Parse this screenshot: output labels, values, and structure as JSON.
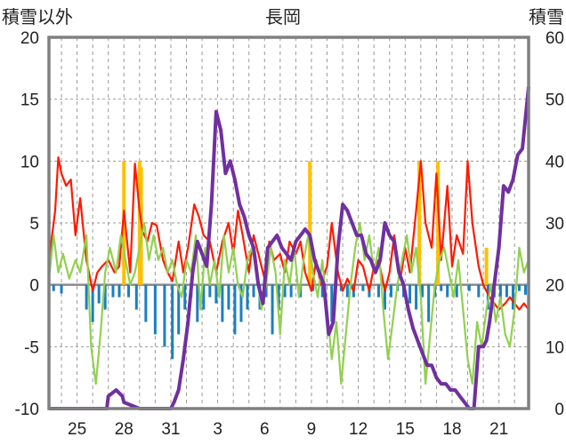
{
  "chart_data": {
    "type": "line",
    "title": "長岡",
    "ylabel_left": "積雪以外",
    "ylabel_right": "積雪",
    "ylim_left": [
      -10,
      20
    ],
    "ylim_right": [
      0,
      60
    ],
    "yticks_left": [
      "20",
      "15",
      "10",
      "5",
      "0",
      "-5",
      "-10"
    ],
    "yticks_right": [
      "60",
      "50",
      "40",
      "30",
      "20",
      "10",
      "0"
    ],
    "xticks": [
      {
        "label": "25",
        "x": 25
      },
      {
        "label": "28",
        "x": 28
      },
      {
        "label": "31",
        "x": 31
      },
      {
        "label": "3",
        "x": 34
      },
      {
        "label": "6",
        "x": 37
      },
      {
        "label": "9",
        "x": 40
      },
      {
        "label": "12",
        "x": 43
      },
      {
        "label": "15",
        "x": 46
      },
      {
        "label": "18",
        "x": 49
      },
      {
        "label": "21",
        "x": 52
      }
    ],
    "xlim": [
      23.2,
      53.9
    ],
    "grid": true,
    "colors": {
      "temperature": "#ff1a00",
      "wind": "#92d050",
      "sunshine": "#ffc000",
      "precipitation": "#1a7fc1",
      "snow_depth": "#7030a0"
    },
    "series": [
      {
        "key": "temperature",
        "axis": "left",
        "x": [
          23.2,
          23.6,
          23.8,
          24.0,
          24.3,
          24.6,
          24.9,
          25.2,
          25.6,
          26.0,
          26.3,
          26.6,
          27.0,
          27.4,
          27.7,
          28.0,
          28.2,
          28.4,
          28.7,
          29.0,
          29.2,
          29.5,
          29.8,
          30.1,
          30.5,
          30.8,
          31.1,
          31.5,
          31.8,
          32.1,
          32.5,
          32.8,
          33.1,
          33.5,
          33.9,
          34.3,
          34.7,
          35.0,
          35.3,
          35.6,
          36.0,
          36.3,
          36.6,
          37.0,
          37.3,
          37.6,
          38.0,
          38.3,
          38.6,
          39.0,
          39.3,
          39.6,
          40.0,
          40.3,
          40.6,
          41.0,
          41.3,
          41.7,
          42.0,
          42.3,
          42.7,
          43.0,
          43.3,
          43.7,
          44.0,
          44.3,
          44.7,
          45.0,
          45.3,
          45.7,
          46.0,
          46.3,
          46.7,
          47.0,
          47.3,
          47.7,
          48.0,
          48.3,
          48.7,
          49.0,
          49.3,
          49.7,
          50.0,
          50.3,
          50.7,
          51.0,
          51.4,
          51.7,
          52.0,
          52.4,
          52.7,
          53.0,
          53.3,
          53.6,
          53.9
        ],
        "y": [
          2,
          6,
          10.3,
          9,
          8,
          8.5,
          4,
          7,
          2,
          -0.5,
          1,
          1.5,
          2,
          1,
          1.5,
          6,
          3.5,
          1,
          9.8,
          6,
          4.3,
          3.5,
          5,
          4.8,
          2,
          1,
          0.3,
          3.5,
          1,
          3,
          6.5,
          5.5,
          4,
          3.5,
          1,
          3.5,
          5,
          2.5,
          6,
          4,
          1,
          4,
          2.5,
          0.5,
          3.5,
          2,
          2.5,
          1,
          3.5,
          2.5,
          3.5,
          1,
          -0.5,
          2,
          0,
          1.5,
          5,
          1,
          -0.5,
          0.5,
          -0.5,
          2,
          1.5,
          -0.5,
          1.5,
          2,
          -0.5,
          1,
          4,
          0.5,
          3,
          1,
          6,
          10,
          5,
          3,
          9,
          2,
          8,
          1.5,
          4,
          2.5,
          10,
          5,
          1.5,
          0,
          -1,
          -1.5,
          -2,
          -1.5,
          -1,
          -1.5,
          -2,
          -1.5,
          -2
        ]
      },
      {
        "key": "wind",
        "axis": "left",
        "x": [
          23.2,
          23.5,
          23.8,
          24.1,
          24.5,
          24.9,
          25.2,
          25.6,
          25.9,
          26.2,
          26.5,
          26.8,
          27.1,
          27.5,
          27.8,
          28.1,
          28.4,
          28.7,
          29.0,
          29.3,
          29.6,
          29.9,
          30.2,
          30.5,
          30.8,
          31.1,
          31.4,
          31.7,
          32.0,
          32.3,
          32.6,
          32.9,
          33.2,
          33.5,
          33.8,
          34.1,
          34.4,
          34.7,
          35.0,
          35.3,
          35.6,
          35.9,
          36.2,
          36.5,
          36.8,
          37.1,
          37.4,
          37.7,
          38.0,
          38.3,
          38.6,
          38.9,
          39.2,
          39.5,
          39.8,
          40.1,
          40.4,
          40.7,
          41.0,
          41.3,
          41.6,
          41.9,
          42.2,
          42.5,
          42.8,
          43.1,
          43.4,
          43.7,
          44.0,
          44.3,
          44.6,
          44.9,
          45.2,
          45.5,
          45.8,
          46.1,
          46.4,
          46.7,
          47.0,
          47.3,
          47.6,
          47.9,
          48.2,
          48.5,
          48.8,
          49.1,
          49.4,
          49.7,
          50.0,
          50.3,
          50.6,
          50.9,
          51.2,
          51.5,
          51.8,
          52.1,
          52.4,
          52.7,
          53.0,
          53.3,
          53.6,
          53.9
        ],
        "y": [
          0.5,
          4,
          1,
          2.5,
          0.5,
          2,
          1,
          4,
          -5,
          -8,
          -4,
          1,
          3,
          1,
          4,
          2,
          0,
          1,
          3,
          5,
          2,
          4,
          2,
          3,
          1,
          2,
          0,
          -1,
          2,
          1,
          4,
          -2,
          3,
          0,
          2,
          -1,
          4,
          1,
          3,
          0,
          -1,
          2,
          3,
          1,
          -2,
          0,
          3,
          1,
          -4,
          2,
          0,
          3,
          -1,
          2,
          4,
          1,
          -1,
          2,
          -2,
          -6,
          -3,
          -8,
          -4,
          0,
          3,
          5,
          2,
          4,
          1,
          3,
          -2,
          -6,
          -3,
          0,
          2,
          4,
          1,
          3,
          -1,
          -8,
          -4,
          0,
          2,
          3,
          1,
          -1,
          2,
          -2,
          -6,
          -8,
          -3,
          -5,
          -2,
          0,
          -3,
          -1,
          -4,
          -5,
          -2,
          3,
          1,
          2
        ]
      },
      {
        "key": "snow_depth",
        "axis": "right",
        "x": [
          23.2,
          24.0,
          25.0,
          26.0,
          26.9,
          27.0,
          27.5,
          27.9,
          28.0,
          29.0,
          30.0,
          31.0,
          31.2,
          31.5,
          31.8,
          32.1,
          32.4,
          32.7,
          33.0,
          33.3,
          33.6,
          33.9,
          34.2,
          34.5,
          34.8,
          35.1,
          35.4,
          35.7,
          36.0,
          36.3,
          36.6,
          36.9,
          37.2,
          37.5,
          37.8,
          38.1,
          38.4,
          38.7,
          39.0,
          39.3,
          39.6,
          39.9,
          40.2,
          40.5,
          40.8,
          41.1,
          41.4,
          41.7,
          42.0,
          42.3,
          42.6,
          42.9,
          43.2,
          43.5,
          43.8,
          44.1,
          44.4,
          44.7,
          45.0,
          45.3,
          45.6,
          45.9,
          46.2,
          46.5,
          46.8,
          47.1,
          47.4,
          47.7,
          48.0,
          48.3,
          48.6,
          48.9,
          49.2,
          49.5,
          49.8,
          50.1,
          50.4,
          50.7,
          51.0,
          51.2,
          51.4,
          51.6,
          51.8,
          52.0,
          52.3,
          52.6,
          52.9,
          53.2,
          53.5,
          53.9
        ],
        "y": [
          0,
          0,
          0,
          0,
          0,
          2,
          3,
          2,
          1,
          0,
          0,
          0,
          1,
          3,
          8,
          14,
          22,
          27,
          25,
          23,
          33,
          48,
          45,
          38,
          40,
          37,
          33,
          31,
          28,
          26,
          20,
          17,
          26,
          27,
          28,
          26,
          25,
          24,
          27,
          28,
          29,
          28,
          24,
          22,
          20,
          12,
          14,
          26,
          33,
          32,
          30,
          28,
          28,
          25,
          24,
          22,
          24,
          30,
          28,
          27,
          22,
          20,
          16,
          13,
          11,
          9,
          7,
          7,
          5,
          4,
          4,
          3,
          3,
          2,
          1,
          0,
          0,
          10,
          10,
          11,
          14,
          18,
          22,
          26,
          36,
          35,
          37,
          41,
          42,
          52
        ]
      }
    ],
    "precipitation_bars": {
      "color": "#1a7fc1",
      "x": [
        23.5,
        24.0,
        25.6,
        26.0,
        26.4,
        26.8,
        27.3,
        27.7,
        28.3,
        28.8,
        29.4,
        30.0,
        30.6,
        31.1,
        31.5,
        31.9,
        32.3,
        32.7,
        33.1,
        33.5,
        33.9,
        34.3,
        34.7,
        35.1,
        35.5,
        35.9,
        36.3,
        36.7,
        37.1,
        37.5,
        37.9,
        38.3,
        38.7,
        39.3,
        40.1,
        40.7,
        41.3,
        41.9,
        42.3,
        42.7,
        43.3,
        43.7,
        44.3,
        44.7,
        45.1,
        45.5,
        45.9,
        46.3,
        46.7,
        47.1,
        47.5,
        47.9,
        48.3,
        48.7,
        49.3,
        50.1,
        50.7,
        51.3,
        51.7,
        52.1,
        52.5,
        52.9,
        53.3,
        53.7
      ],
      "y": [
        -0.5,
        -0.7,
        -2,
        -3,
        -1.5,
        -2,
        -1,
        -1,
        -1,
        -2,
        -3,
        -4,
        -5,
        -6,
        -4,
        -2,
        -1,
        -3,
        -2,
        -1,
        -1.5,
        -3,
        -2,
        -4,
        -3,
        -2,
        -1,
        -2,
        -1,
        -4,
        -2,
        -1,
        -1,
        -1,
        -0.5,
        -1,
        -3,
        -0.5,
        -1,
        -1,
        -0.5,
        -1,
        -1,
        -2,
        -1,
        -0.5,
        -1,
        -1.5,
        -2,
        -1,
        -3,
        -1,
        -0.5,
        -1,
        -1,
        -0.5,
        -1,
        -2,
        -1,
        -1.5,
        -1,
        -2,
        -0.5,
        -0.8
      ]
    },
    "sunshine_bars": {
      "color": "#ffc000",
      "x": [
        28.0,
        29.0,
        29.1,
        39.9,
        46.9,
        48.1,
        51.2
      ],
      "y": [
        10,
        10,
        9.5,
        10,
        10,
        10,
        3
      ]
    }
  }
}
